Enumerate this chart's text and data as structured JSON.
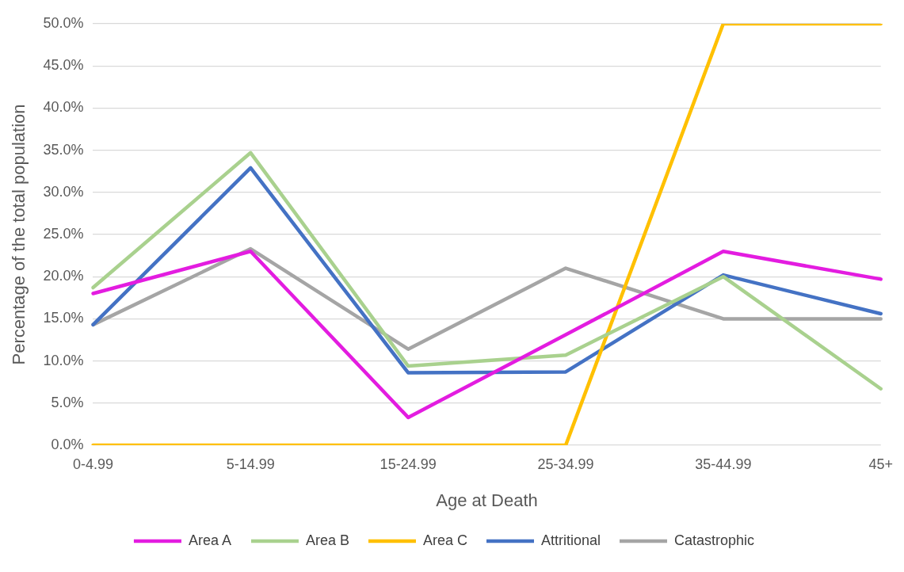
{
  "chart_data": {
    "type": "line",
    "xlabel": "Age at Death",
    "ylabel": "Percentage of the total population",
    "categories": [
      "0-4.99",
      "5-14.99",
      "15-24.99",
      "25-34.99",
      "35-44.99",
      "45+"
    ],
    "series": [
      {
        "name": "Area A",
        "color": "#e31ce0",
        "values": [
          18.0,
          23.0,
          3.3,
          13.1,
          23.0,
          19.7
        ]
      },
      {
        "name": "Area B",
        "color": "#a9d18e",
        "values": [
          18.7,
          34.7,
          9.4,
          10.7,
          20.0,
          6.7
        ]
      },
      {
        "name": "Area C",
        "color": "#ffc000",
        "values": [
          0,
          0,
          0,
          0,
          50,
          50
        ]
      },
      {
        "name": "Attritional",
        "color": "#4472c4",
        "values": [
          14.3,
          32.9,
          8.6,
          8.7,
          20.2,
          15.6
        ]
      },
      {
        "name": "Catastrophic",
        "color": "#a5a5a5",
        "values": [
          14.3,
          23.3,
          11.4,
          21.0,
          15.0,
          15.0
        ]
      }
    ],
    "ylim": [
      0,
      50
    ],
    "yticks": [
      {
        "value": 0,
        "label": "0.0%"
      },
      {
        "value": 5,
        "label": "5.0%"
      },
      {
        "value": 10,
        "label": "10.0%"
      },
      {
        "value": 15,
        "label": "15.0%"
      },
      {
        "value": 20,
        "label": "20.0%"
      },
      {
        "value": 25,
        "label": "25.0%"
      },
      {
        "value": 30,
        "label": "30.0%"
      },
      {
        "value": 35,
        "label": "35.0%"
      },
      {
        "value": 40,
        "label": "40.0%"
      },
      {
        "value": 45,
        "label": "45.0%"
      },
      {
        "value": 50,
        "label": "50.0%"
      }
    ],
    "grid": "y",
    "legend": "bottom",
    "marker": "none",
    "line_style": "solid"
  }
}
